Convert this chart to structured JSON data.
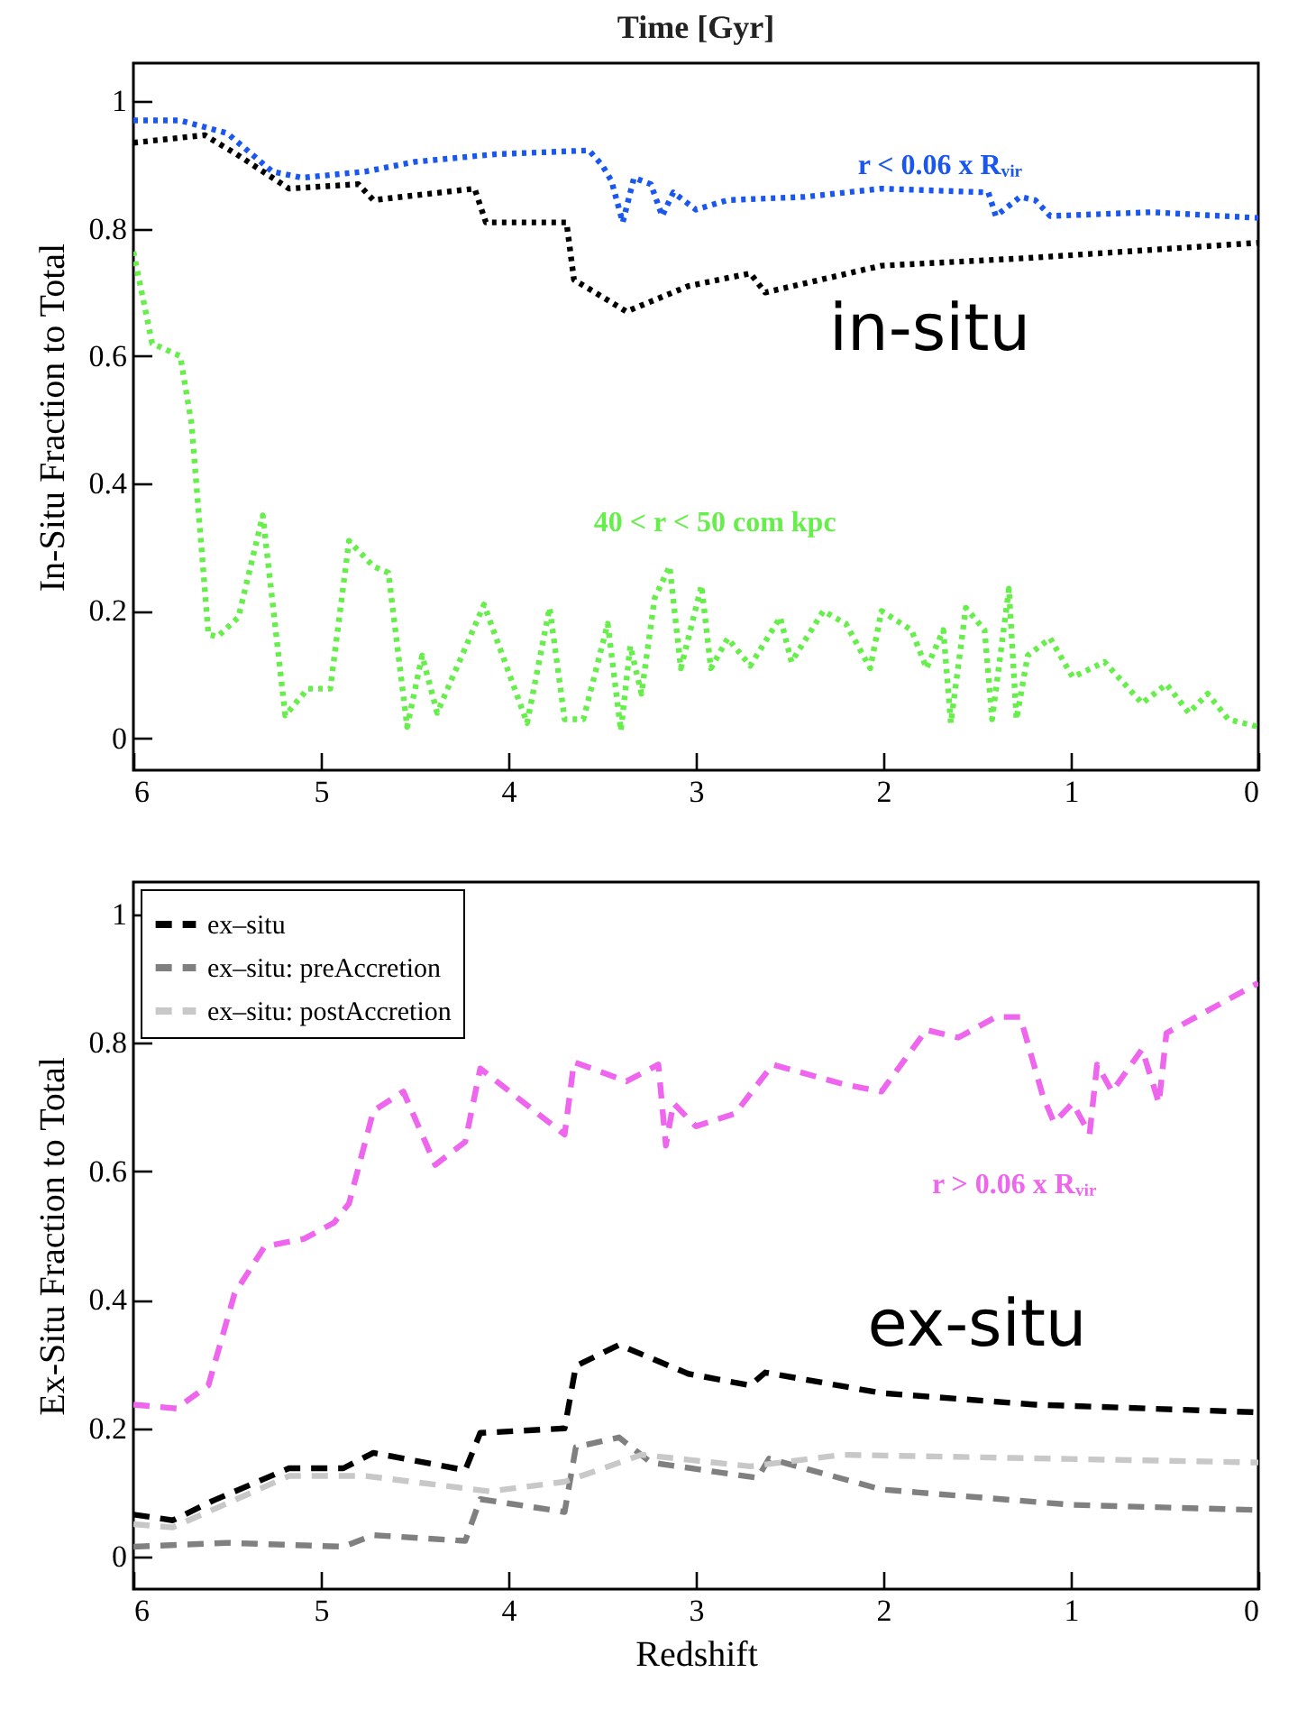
{
  "chart_data": [
    {
      "type": "line",
      "title": "Time [Gyr]",
      "ylabel": "In-Situ Fraction to Total",
      "line_style": "dotted",
      "xlim": [
        6,
        0
      ],
      "xticks": [
        6,
        5,
        4,
        3,
        2,
        1,
        0
      ],
      "ylim": [
        -0.05,
        1.06
      ],
      "yticks": [
        0,
        0.2,
        0.4,
        0.6,
        0.8,
        1
      ],
      "grid": false,
      "annotations": [
        "in-situ",
        "r < 0.06 x Rᵥᵢᵣ",
        "40 < r < 50 com kpc"
      ],
      "series": [
        {
          "color": "#1a56f0",
          "x": [
            6,
            5.75,
            5.5,
            5.26,
            5.1,
            4.76,
            4.5,
            4.07,
            3.57,
            3.5,
            3.45,
            3.39,
            3.33,
            3.24,
            3.18,
            3.12,
            3,
            2.83,
            2.42,
            2.01,
            1.44,
            1.4,
            1.27,
            1.19,
            1.11,
            0.57,
            0
          ],
          "values": [
            0.97,
            0.97,
            0.95,
            0.89,
            0.88,
            0.89,
            0.905,
            0.917,
            0.923,
            0.9,
            0.875,
            0.81,
            0.88,
            0.87,
            0.82,
            0.857,
            0.83,
            0.845,
            0.85,
            0.863,
            0.857,
            0.82,
            0.85,
            0.845,
            0.82,
            0.826,
            0.817
          ]
        },
        {
          "color": "#000000",
          "x": [
            6,
            5.62,
            5.45,
            5.17,
            4.8,
            4.72,
            4.18,
            4.12,
            3.69,
            3.65,
            3.37,
            3.04,
            2.71,
            2.63,
            2.01,
            1.23,
            0
          ],
          "values": [
            0.935,
            0.947,
            0.917,
            0.863,
            0.87,
            0.845,
            0.863,
            0.81,
            0.81,
            0.72,
            0.67,
            0.71,
            0.73,
            0.7,
            0.742,
            0.754,
            0.778
          ]
        },
        {
          "color": "#66ee4a",
          "x": [
            6,
            5.9,
            5.75,
            5.69,
            5.6,
            5.55,
            5.44,
            5.31,
            5.19,
            5.07,
            4.95,
            4.85,
            4.72,
            4.64,
            4.54,
            4.46,
            4.38,
            4.13,
            3.9,
            3.78,
            3.7,
            3.6,
            3.47,
            3.4,
            3.35,
            3.29,
            3.22,
            3.14,
            3.08,
            2.97,
            2.92,
            2.83,
            2.71,
            2.55,
            2.49,
            2.32,
            2.2,
            2.07,
            2.01,
            1.85,
            1.77,
            1.68,
            1.64,
            1.56,
            1.46,
            1.42,
            1.33,
            1.29,
            1.23,
            1.11,
            0.99,
            0.82,
            0.62,
            0.49,
            0.37,
            0.27,
            0.16,
            0
          ],
          "values": [
            0.764,
            0.62,
            0.6,
            0.494,
            0.163,
            0.16,
            0.19,
            0.35,
            0.036,
            0.078,
            0.078,
            0.31,
            0.27,
            0.26,
            0.018,
            0.13,
            0.04,
            0.21,
            0.024,
            0.205,
            0.03,
            0.03,
            0.18,
            0.012,
            0.145,
            0.07,
            0.22,
            0.27,
            0.11,
            0.24,
            0.11,
            0.157,
            0.114,
            0.19,
            0.12,
            0.2,
            0.18,
            0.11,
            0.2,
            0.17,
            0.11,
            0.17,
            0.024,
            0.205,
            0.17,
            0.03,
            0.235,
            0.03,
            0.13,
            0.157,
            0.096,
            0.12,
            0.055,
            0.085,
            0.04,
            0.07,
            0.03,
            0.018
          ]
        }
      ]
    },
    {
      "type": "line",
      "xlabel": "Redshift",
      "ylabel": "Ex-Situ Fraction to Total",
      "line_style": "dashed",
      "xlim": [
        6,
        0
      ],
      "xticks": [
        6,
        5,
        4,
        3,
        2,
        1,
        0
      ],
      "ylim": [
        -0.05,
        1.05
      ],
      "yticks": [
        0,
        0.2,
        0.4,
        0.6,
        0.8,
        1
      ],
      "grid": false,
      "legend": "top left",
      "annotations": [
        "ex-situ",
        "r > 0.06 x Rᵥᵢᵣ"
      ],
      "series": [
        {
          "color": "#ee66ee",
          "x": [
            6,
            5.77,
            5.6,
            5.46,
            5.3,
            5.09,
            4.93,
            4.85,
            4.72,
            4.56,
            4.39,
            4.23,
            4.15,
            3.7,
            3.65,
            3.37,
            3.2,
            3.16,
            3.12,
            3,
            2.79,
            2.59,
            2.22,
            2.01,
            1.77,
            1.6,
            1.4,
            1.27,
            1.15,
            1.09,
            0.99,
            0.9,
            0.86,
            0.78,
            0.62,
            0.53,
            0.49,
            0
          ],
          "values": [
            0.237,
            0.231,
            0.267,
            0.41,
            0.483,
            0.495,
            0.52,
            0.55,
            0.694,
            0.724,
            0.61,
            0.646,
            0.76,
            0.657,
            0.77,
            0.74,
            0.766,
            0.64,
            0.706,
            0.67,
            0.69,
            0.766,
            0.736,
            0.724,
            0.82,
            0.808,
            0.84,
            0.84,
            0.718,
            0.676,
            0.706,
            0.658,
            0.766,
            0.724,
            0.79,
            0.706,
            0.815,
            0.893
          ]
        },
        {
          "name": "ex–situ",
          "color": "#000000",
          "x": [
            6,
            5.79,
            5.58,
            5.17,
            4.88,
            4.72,
            4.23,
            4.15,
            3.7,
            3.64,
            3.41,
            3.04,
            2.71,
            2.63,
            2.01,
            1.19,
            0
          ],
          "values": [
            0.066,
            0.057,
            0.087,
            0.138,
            0.138,
            0.162,
            0.135,
            0.193,
            0.2,
            0.297,
            0.33,
            0.285,
            0.267,
            0.287,
            0.255,
            0.237,
            0.225
          ]
        },
        {
          "name": "ex–situ: preAccretion",
          "color": "#808080",
          "x": [
            6,
            5.5,
            4.88,
            4.72,
            4.23,
            4.15,
            3.7,
            3.64,
            3.41,
            3.24,
            2.67,
            2.61,
            2.01,
            0.99,
            0
          ],
          "values": [
            0.016,
            0.022,
            0.016,
            0.034,
            0.025,
            0.09,
            0.07,
            0.171,
            0.186,
            0.147,
            0.123,
            0.153,
            0.105,
            0.081,
            0.073
          ]
        },
        {
          "name": "ex–situ: postAccretion",
          "color": "#c8c8c8",
          "x": [
            6,
            5.79,
            5.17,
            4.76,
            4.1,
            3.7,
            3.29,
            2.71,
            2.22,
            0
          ],
          "values": [
            0.051,
            0.046,
            0.126,
            0.126,
            0.102,
            0.117,
            0.159,
            0.141,
            0.159,
            0.147
          ]
        }
      ]
    }
  ]
}
